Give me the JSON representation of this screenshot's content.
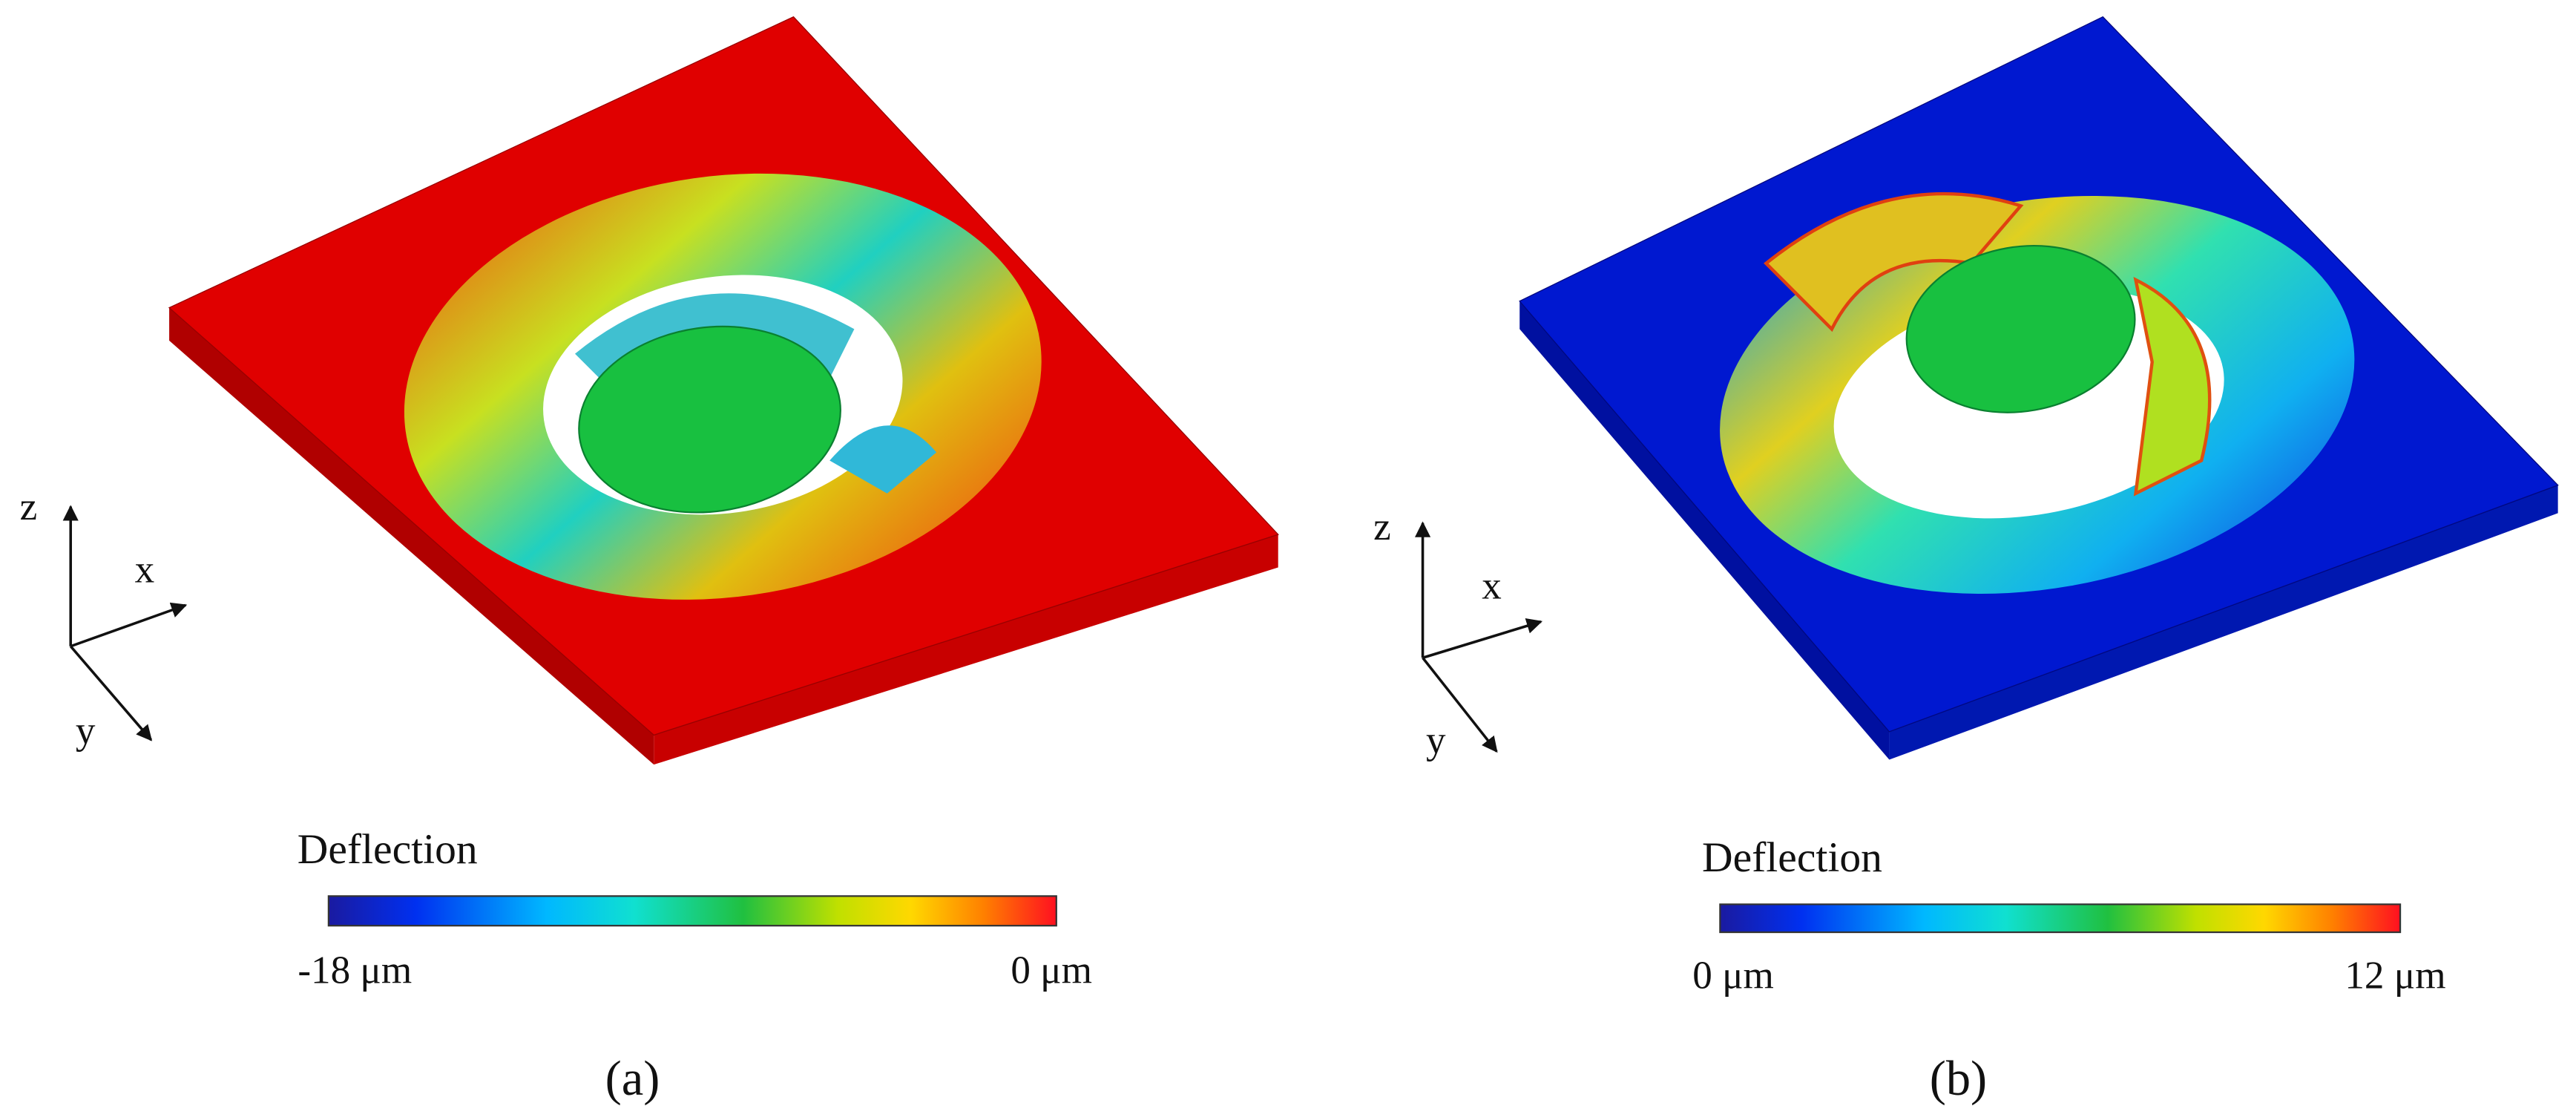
{
  "panels": [
    {
      "axes": {
        "z": "z",
        "x": "x",
        "y": "y"
      },
      "colorbar": {
        "title": "Deflection",
        "min_label": "-18 μm",
        "max_label": "0 μm"
      },
      "caption": "(a)"
    },
    {
      "axes": {
        "z": "z",
        "x": "x",
        "y": "y"
      },
      "colorbar": {
        "title": "Deflection",
        "min_label": "0 μm",
        "max_label": "12 μm"
      },
      "caption": "(b)"
    }
  ]
}
